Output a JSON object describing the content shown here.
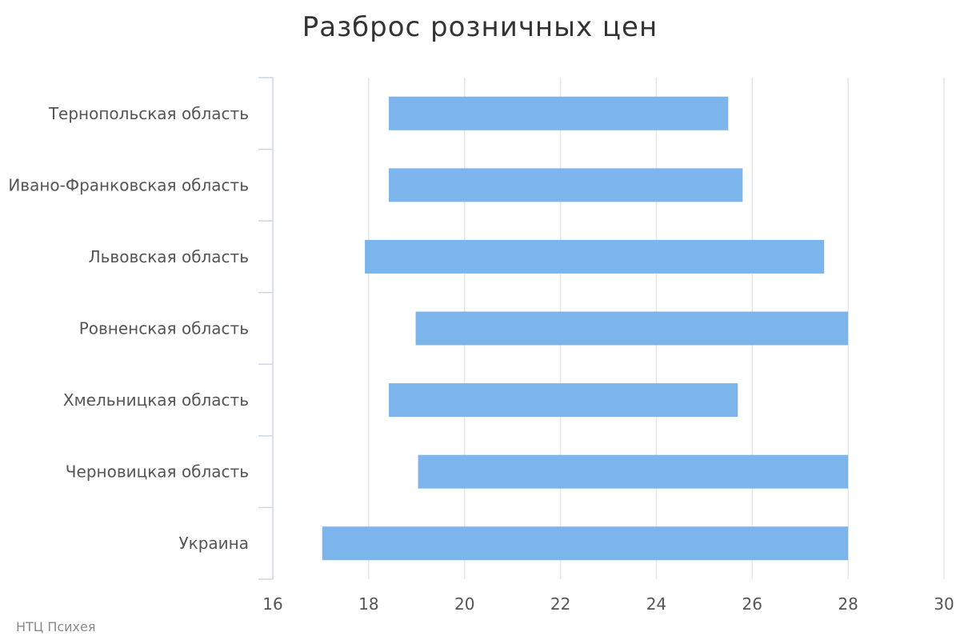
{
  "chart_data": {
    "type": "bar",
    "orientation": "horizontal",
    "range_bars": true,
    "title": "Разброс розничных цен",
    "credits": "НТЦ Психея",
    "categories": [
      "Тернопольская область",
      "Ивано-Франковская область",
      "Львовская область",
      "Ровненская область",
      "Хмельницкая область",
      "Черновицкая область",
      "Украина"
    ],
    "series": [
      {
        "low": [
          18.42,
          18.42,
          17.92,
          18.98,
          18.42,
          19.03,
          17.03
        ],
        "high": [
          25.5,
          25.8,
          27.5,
          28.0,
          25.7,
          28.0,
          28.0
        ]
      }
    ],
    "xlim": [
      16,
      30
    ],
    "ticks": [
      16,
      18,
      20,
      22,
      24,
      26,
      28,
      30
    ],
    "grid": true,
    "colors": {
      "bar": "#7cb5ec",
      "grid": "#e6e6e6",
      "axis": "#ccd6eb",
      "text": "#555555"
    }
  }
}
